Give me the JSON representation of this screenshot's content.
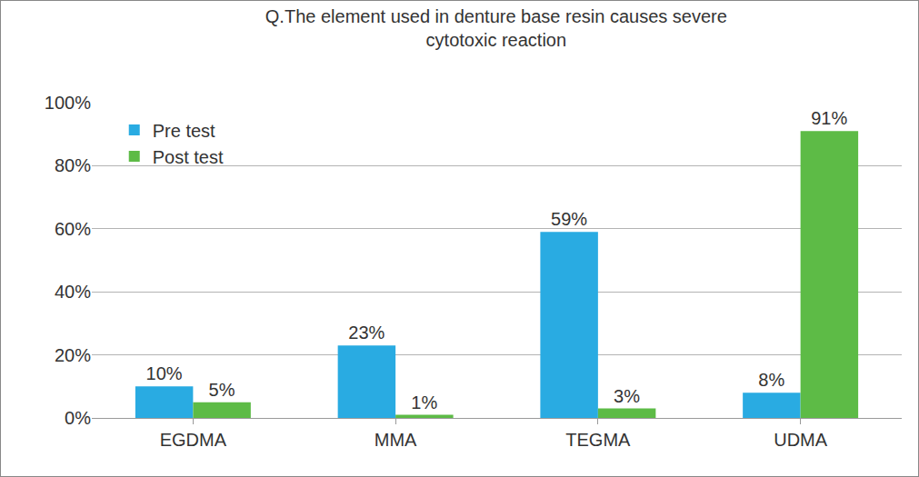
{
  "chart_data": {
    "type": "bar",
    "title": "Q.The element used in denture base resin causes severe cytotoxic reaction",
    "categories": [
      "EGDMA",
      "MMA",
      "TEGMA",
      "UDMA"
    ],
    "series": [
      {
        "name": "Pre test",
        "color": "#29abe2",
        "values": [
          10,
          23,
          59,
          8
        ],
        "value_labels": [
          "10%",
          "23%",
          "59%",
          "8%"
        ]
      },
      {
        "name": "Post test",
        "color": "#5dbb46",
        "values": [
          5,
          1,
          3,
          91
        ],
        "value_labels": [
          "5%",
          "1%",
          "3%",
          "91%"
        ]
      }
    ],
    "ylim": [
      0,
      100
    ],
    "yticks": [
      {
        "value": 0,
        "label": "0%"
      },
      {
        "value": 20,
        "label": "20%"
      },
      {
        "value": 40,
        "label": "40%"
      },
      {
        "value": 60,
        "label": "60%"
      },
      {
        "value": 80,
        "label": "80%"
      },
      {
        "value": 100,
        "label": "100%"
      }
    ],
    "grid": true,
    "legend": "upper left",
    "data_labels": true
  }
}
